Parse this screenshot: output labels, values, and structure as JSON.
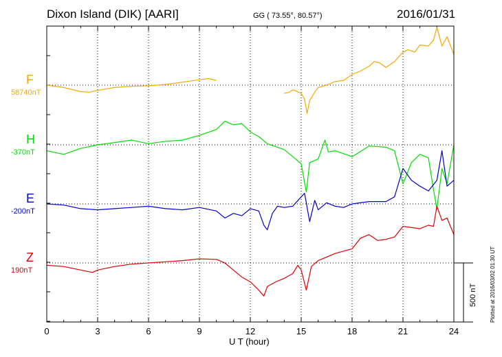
{
  "header": {
    "station": "Dixon Island (DIK)  [AARI]",
    "coords": "GG ( 73.55°,  80.57°)",
    "date": "2016/01/31"
  },
  "footer": {
    "plotted": "Plotted at 2016/03/02 01:30 UT",
    "scale_label": "500 nT"
  },
  "components": [
    {
      "name": "F",
      "baseline": "58740nT",
      "color": "#f5a800"
    },
    {
      "name": "H",
      "baseline": "-370nT",
      "color": "#00dd00"
    },
    {
      "name": "E",
      "baseline": "-200nT",
      "color": "#0000cc"
    },
    {
      "name": "Z",
      "baseline": "190nT",
      "color": "#dd0000"
    }
  ],
  "chart_data": {
    "type": "line",
    "title": "Dixon Island (DIK)  [AARI]",
    "xlabel": "U T (hour)",
    "ylabel": "",
    "xlim": [
      0,
      24
    ],
    "xticks": [
      0,
      3,
      6,
      9,
      12,
      15,
      18,
      21,
      24
    ],
    "grid": true,
    "scale_bar_nT": 500,
    "units": "nT offset from baseline",
    "series": [
      {
        "name": "F",
        "color": "#f5a800",
        "baseline_nT": 58740,
        "points": [
          [
            0,
            0
          ],
          [
            1,
            -20
          ],
          [
            2,
            -55
          ],
          [
            2.5,
            -60
          ],
          [
            3,
            -45
          ],
          [
            4,
            -20
          ],
          [
            5,
            -10
          ],
          [
            6,
            -5
          ],
          [
            7,
            5
          ],
          [
            8,
            25
          ],
          [
            9,
            45
          ],
          [
            9.5,
            55
          ],
          [
            10,
            40
          ],
          null,
          [
            14,
            -70
          ],
          [
            14.3,
            -60
          ],
          [
            14.5,
            -40
          ],
          [
            14.7,
            -50
          ],
          [
            15,
            -70
          ],
          [
            15.2,
            -120
          ],
          [
            15.35,
            -240
          ],
          [
            15.5,
            -130
          ],
          [
            15.8,
            -60
          ],
          [
            16,
            -20
          ],
          [
            16.5,
            0
          ],
          [
            17,
            30
          ],
          [
            17.5,
            40
          ],
          [
            18,
            90
          ],
          [
            18.5,
            120
          ],
          [
            19,
            160
          ],
          [
            19.3,
            200
          ],
          [
            19.6,
            190
          ],
          [
            20,
            150
          ],
          [
            20.5,
            200
          ],
          [
            21,
            280
          ],
          [
            21.3,
            300
          ],
          [
            21.7,
            280
          ],
          [
            22,
            340
          ],
          [
            22.5,
            330
          ],
          [
            22.8,
            380
          ],
          [
            23,
            490
          ],
          [
            23.3,
            330
          ],
          [
            23.6,
            410
          ],
          [
            24,
            260
          ]
        ]
      },
      {
        "name": "H",
        "color": "#00dd00",
        "baseline_nT": -370,
        "points": [
          [
            0,
            -50
          ],
          [
            1,
            -80
          ],
          [
            2,
            -30
          ],
          [
            3,
            0
          ],
          [
            4,
            20
          ],
          [
            5,
            40
          ],
          [
            6,
            10
          ],
          [
            7,
            30
          ],
          [
            8,
            40
          ],
          [
            9,
            80
          ],
          [
            10,
            130
          ],
          [
            10.5,
            200
          ],
          [
            11,
            170
          ],
          [
            11.5,
            180
          ],
          [
            12,
            110
          ],
          [
            12.5,
            70
          ],
          [
            13,
            10
          ],
          [
            14,
            -40
          ],
          [
            14.5,
            -100
          ],
          [
            15,
            -160
          ],
          [
            15.3,
            -400
          ],
          [
            15.5,
            -150
          ],
          [
            16,
            -120
          ],
          [
            16.4,
            40
          ],
          [
            16.6,
            -60
          ],
          [
            17,
            -50
          ],
          [
            18,
            -100
          ],
          [
            19,
            -10
          ],
          [
            20,
            -20
          ],
          [
            20.5,
            -50
          ],
          [
            21,
            -330
          ],
          [
            21.5,
            -150
          ],
          [
            22,
            -80
          ],
          [
            22.5,
            -110
          ],
          [
            22.8,
            -380
          ],
          [
            23,
            -540
          ],
          [
            23.3,
            -200
          ],
          [
            23.6,
            -330
          ],
          [
            24,
            0
          ]
        ]
      },
      {
        "name": "E",
        "color": "#0000cc",
        "baseline_nT": -200,
        "points": [
          [
            0,
            0
          ],
          [
            1,
            -10
          ],
          [
            2,
            -40
          ],
          [
            3,
            -50
          ],
          [
            4,
            -40
          ],
          [
            5,
            -30
          ],
          [
            6,
            -20
          ],
          [
            7,
            -40
          ],
          [
            8,
            -50
          ],
          [
            9,
            -30
          ],
          [
            10,
            -60
          ],
          [
            10.5,
            -120
          ],
          [
            11,
            -80
          ],
          [
            11.5,
            -100
          ],
          [
            12,
            -40
          ],
          [
            12.5,
            -60
          ],
          [
            12.8,
            -180
          ],
          [
            13,
            -220
          ],
          [
            13.3,
            -80
          ],
          [
            13.6,
            -20
          ],
          [
            14,
            -30
          ],
          [
            14.5,
            -20
          ],
          [
            15,
            60
          ],
          [
            15.2,
            90
          ],
          [
            15.5,
            -150
          ],
          [
            15.8,
            30
          ],
          [
            16,
            -50
          ],
          [
            16.5,
            10
          ],
          [
            17,
            -20
          ],
          [
            17.5,
            -30
          ],
          [
            18,
            0
          ],
          [
            19,
            20
          ],
          [
            20,
            20
          ],
          [
            20.5,
            60
          ],
          [
            21,
            300
          ],
          [
            21.5,
            200
          ],
          [
            22,
            150
          ],
          [
            22.5,
            110
          ],
          [
            23,
            200
          ],
          [
            23.3,
            450
          ],
          [
            23.6,
            150
          ],
          [
            24,
            200
          ]
        ]
      },
      {
        "name": "Z",
        "color": "#dd0000",
        "baseline_nT": 190,
        "points": [
          [
            0,
            -20
          ],
          [
            1,
            -30
          ],
          [
            2,
            -60
          ],
          [
            2.7,
            -80
          ],
          [
            3,
            -60
          ],
          [
            4,
            -30
          ],
          [
            5,
            -10
          ],
          [
            6,
            0
          ],
          [
            7,
            10
          ],
          [
            8,
            20
          ],
          [
            9,
            35
          ],
          [
            10,
            30
          ],
          [
            10.5,
            0
          ],
          [
            11,
            -60
          ],
          [
            11.5,
            -120
          ],
          [
            12,
            -160
          ],
          [
            12.5,
            -230
          ],
          [
            12.8,
            -280
          ],
          [
            13,
            -200
          ],
          [
            13.5,
            -160
          ],
          [
            14,
            -130
          ],
          [
            14.5,
            -90
          ],
          [
            14.8,
            -20
          ],
          [
            15,
            -60
          ],
          [
            15.3,
            -230
          ],
          [
            15.6,
            -30
          ],
          [
            16,
            20
          ],
          [
            16.5,
            50
          ],
          [
            17,
            80
          ],
          [
            17.5,
            100
          ],
          [
            18,
            120
          ],
          [
            18.5,
            210
          ],
          [
            19,
            240
          ],
          [
            19.5,
            190
          ],
          [
            20,
            200
          ],
          [
            20.5,
            220
          ],
          [
            21,
            310
          ],
          [
            21.5,
            300
          ],
          [
            22,
            290
          ],
          [
            22.5,
            320
          ],
          [
            22.8,
            310
          ],
          [
            23,
            480
          ],
          [
            23.3,
            360
          ],
          [
            23.6,
            380
          ],
          [
            24,
            240
          ]
        ]
      }
    ]
  }
}
